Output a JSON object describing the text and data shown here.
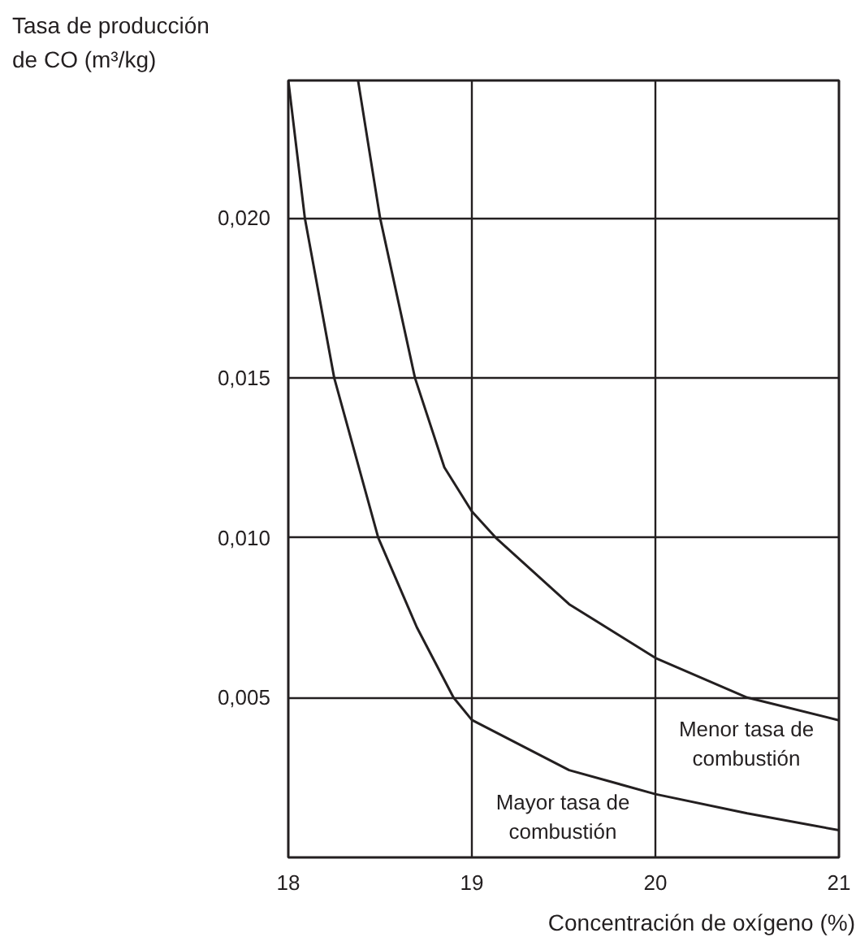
{
  "chart_data": {
    "type": "line",
    "xlabel": "Concentración de oxígeno (%)",
    "ylabel": "Tasa de producción\nde CO (m³/kg)",
    "xlim": [
      18,
      21
    ],
    "xticks": [
      18,
      19,
      20,
      21
    ],
    "ylim": [
      0,
      0.0243
    ],
    "yticks": [
      {
        "value": 0.005,
        "label": "0,005"
      },
      {
        "value": 0.01,
        "label": "0,010"
      },
      {
        "value": 0.015,
        "label": "0,015"
      },
      {
        "value": 0.02,
        "label": "0,020"
      }
    ],
    "grid": true,
    "marker": "none",
    "line_style": "solid",
    "series": [
      {
        "color": "#231f20",
        "x": [
          18.0,
          18.09,
          18.25,
          18.49,
          18.7,
          18.9,
          19.0,
          19.53,
          20.0,
          20.5,
          21.0
        ],
        "values": [
          0.0243,
          0.02,
          0.015,
          0.01,
          0.0072,
          0.005,
          0.0043,
          0.00273,
          0.00198,
          0.00138,
          0.00085
        ]
      },
      {
        "color": "#231f20",
        "x": [
          18.38,
          18.5,
          18.69,
          18.85,
          19.0,
          19.13,
          19.53,
          20.0,
          20.5,
          21.0
        ],
        "values": [
          0.0243,
          0.02,
          0.015,
          0.0122,
          0.01082,
          0.01,
          0.00792,
          0.00624,
          0.005,
          0.00429
        ]
      }
    ],
    "annotations": [
      "Menor tasa de\ncombustión",
      "Mayor tasa de\ncombustión"
    ]
  }
}
